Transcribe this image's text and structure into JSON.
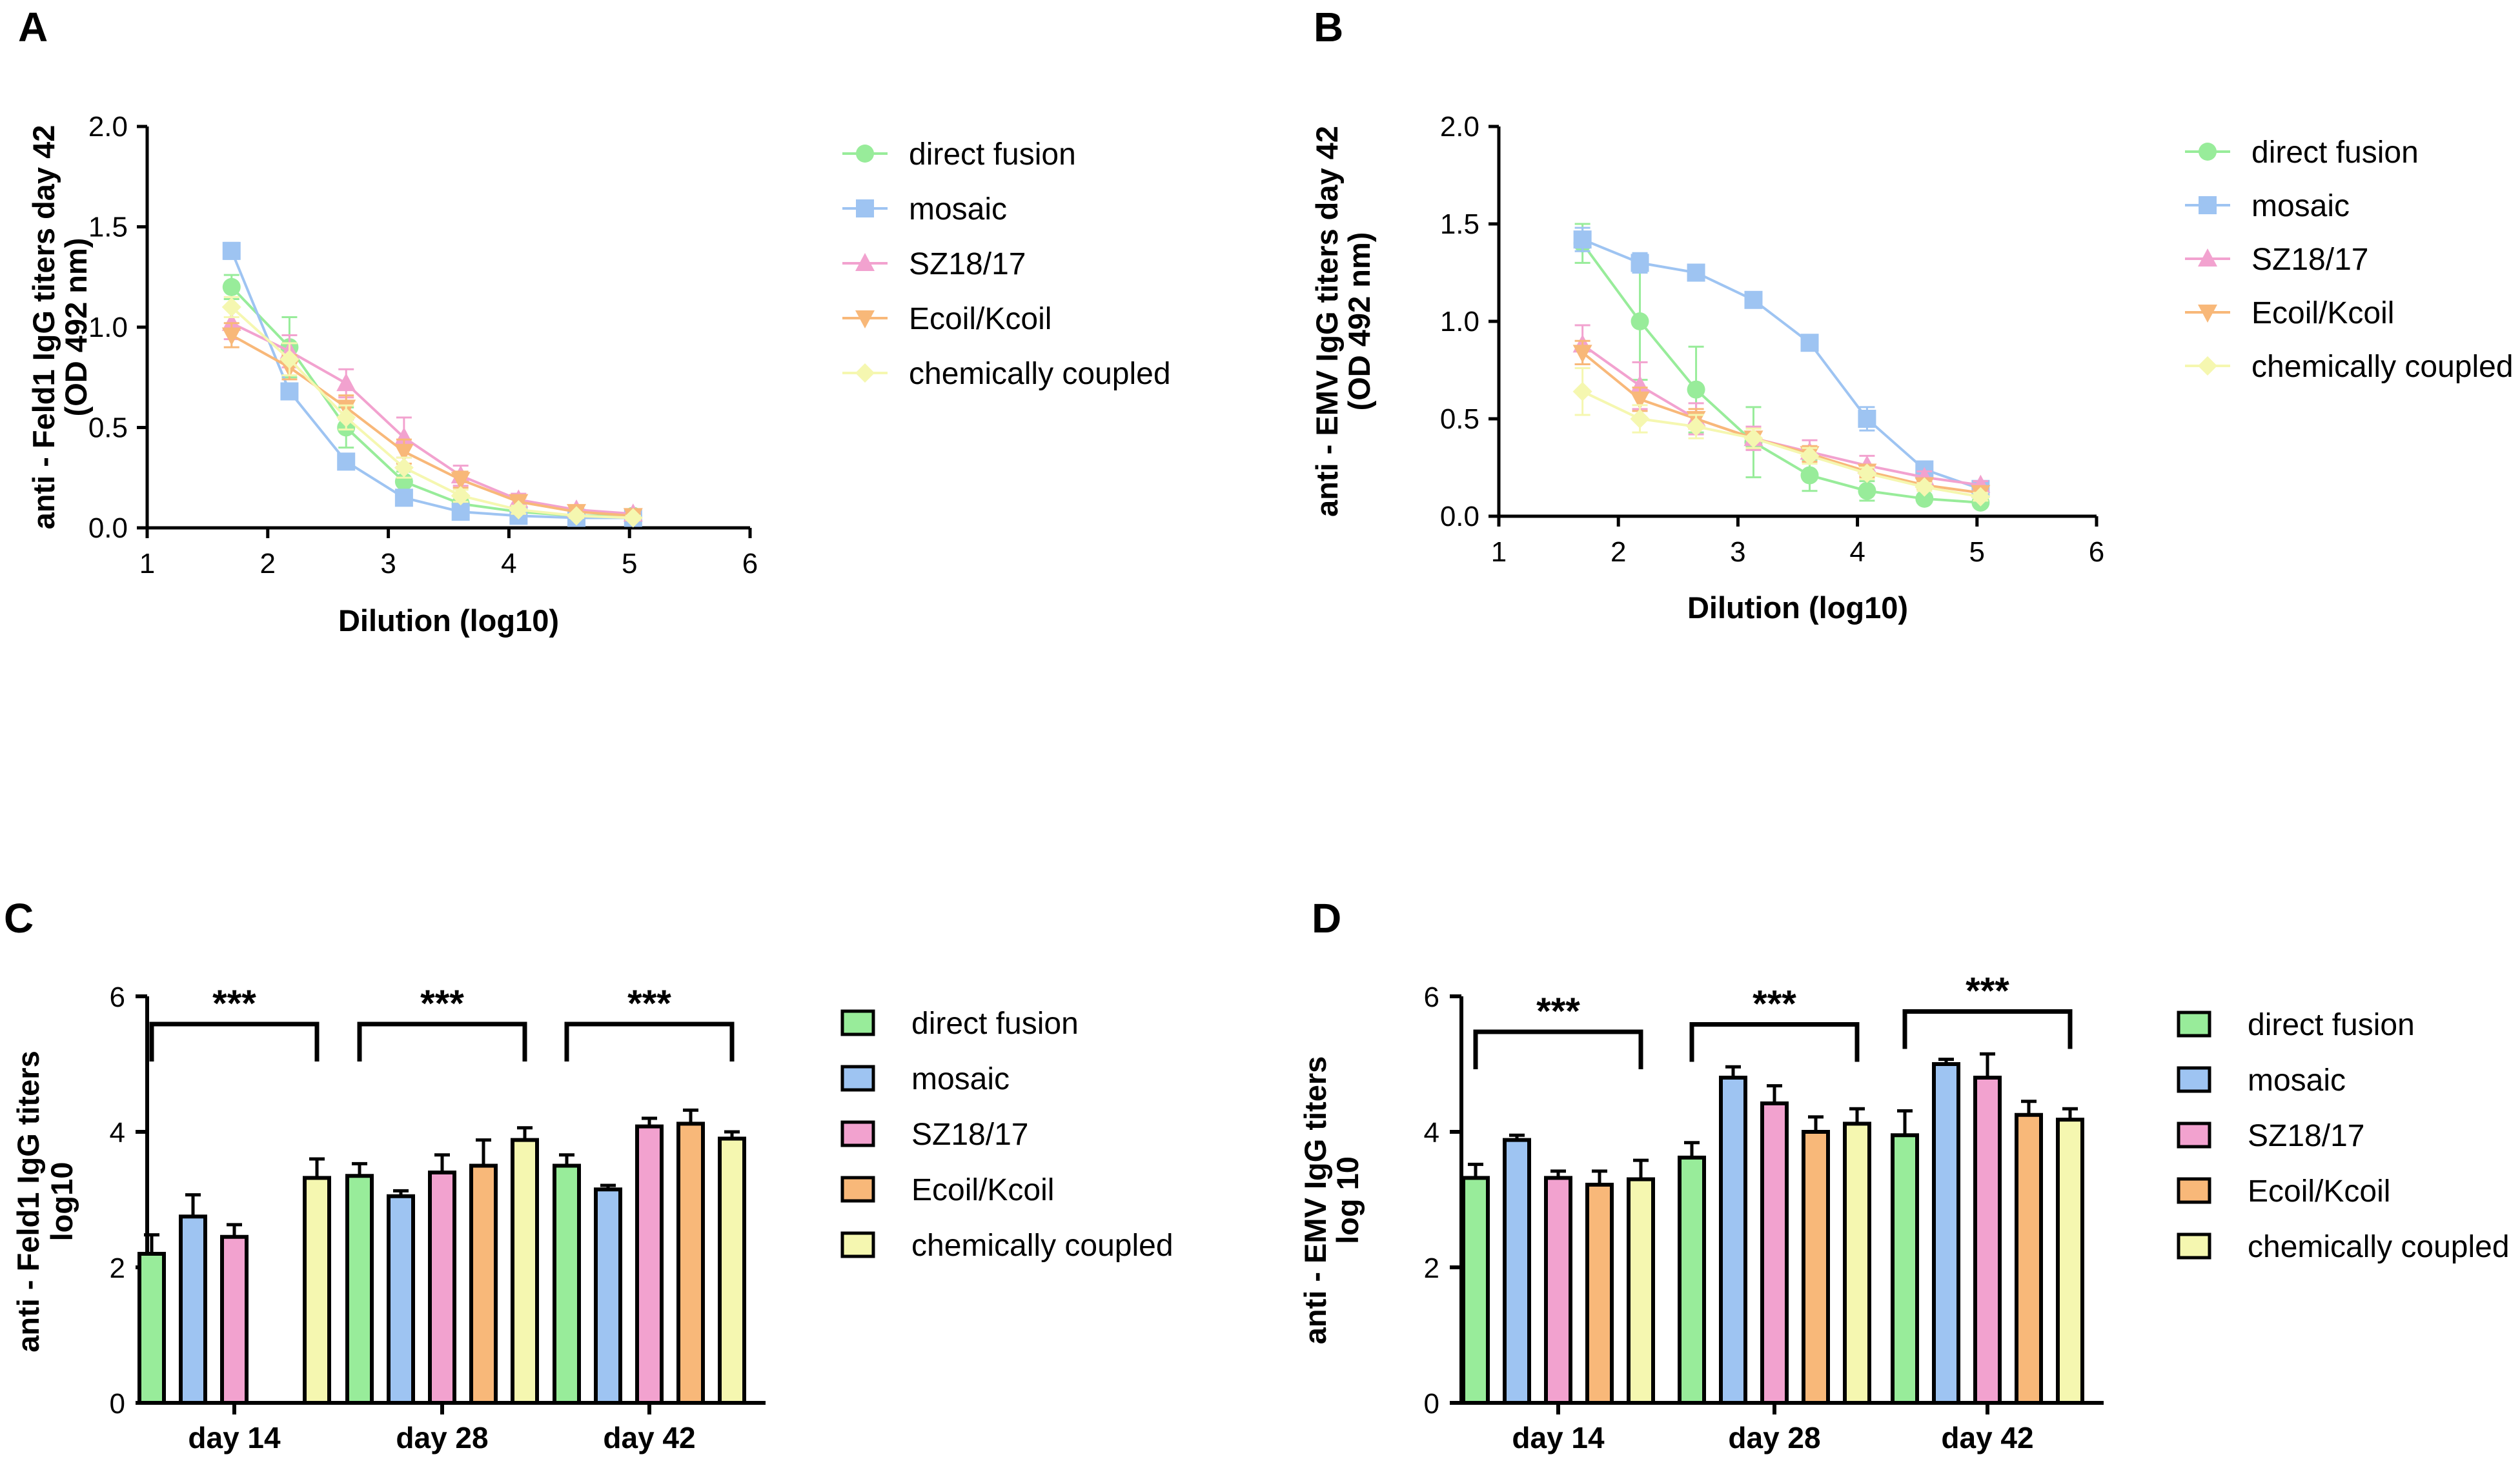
{
  "figure": {
    "panels": [
      "A",
      "B",
      "C",
      "D"
    ]
  },
  "colors": {
    "direct fusion": "#98EC9A",
    "mosaic": "#9EC4F2",
    "SZ18/17": "#F2A2CF",
    "Ecoil/Kcoil": "#F8B879",
    "chemically coupled": "#F5F7B0",
    "axis": "#000000"
  },
  "chart_data": [
    {
      "panel": "A",
      "type": "line",
      "title": "",
      "xlabel": "Dilution (log10)",
      "ylabel": [
        "anti - Feld1 IgG titers day 42",
        "(OD 492 nm)"
      ],
      "xlim": [
        1,
        6
      ],
      "ylim": [
        0,
        2
      ],
      "xticks": [
        "1",
        "2",
        "3",
        "4",
        "5",
        "6"
      ],
      "yticks": [
        "0.0",
        "0.5",
        "1.0",
        "1.5",
        "2.0"
      ],
      "x": [
        1.7,
        2.18,
        2.65,
        3.13,
        3.6,
        4.08,
        4.56,
        5.03
      ],
      "series": [
        {
          "name": "direct fusion",
          "marker": "circle",
          "values": [
            1.2,
            0.9,
            0.5,
            0.23,
            0.12,
            0.08,
            0.06,
            0.06
          ],
          "errors": [
            0.06,
            0.15,
            0.1,
            0.05,
            0.02,
            0.01,
            0.01,
            0.01
          ]
        },
        {
          "name": "mosaic",
          "marker": "square",
          "values": [
            1.38,
            0.68,
            0.33,
            0.15,
            0.08,
            0.06,
            0.05,
            0.05
          ],
          "errors": [
            0.04,
            0.04,
            0.03,
            0.02,
            0.01,
            0.01,
            0.01,
            0.01
          ]
        },
        {
          "name": "SZ18/17",
          "marker": "triangle-up",
          "values": [
            1.02,
            0.88,
            0.72,
            0.45,
            0.26,
            0.14,
            0.09,
            0.07
          ],
          "errors": [
            0.08,
            0.08,
            0.07,
            0.1,
            0.05,
            0.03,
            0.02,
            0.01
          ]
        },
        {
          "name": "Ecoil/Kcoil",
          "marker": "triangle-down",
          "values": [
            0.96,
            0.8,
            0.6,
            0.38,
            0.24,
            0.13,
            0.08,
            0.06
          ],
          "errors": [
            0.06,
            0.06,
            0.06,
            0.06,
            0.04,
            0.02,
            0.02,
            0.01
          ]
        },
        {
          "name": "chemically coupled",
          "marker": "diamond",
          "values": [
            1.1,
            0.84,
            0.55,
            0.3,
            0.16,
            0.09,
            0.06,
            0.05
          ],
          "errors": [
            0.05,
            0.08,
            0.06,
            0.05,
            0.03,
            0.02,
            0.01,
            0.01
          ]
        }
      ]
    },
    {
      "panel": "B",
      "type": "line",
      "title": "",
      "xlabel": "Dilution (log10)",
      "ylabel": [
        "anti - EMV IgG titers day 42",
        "(OD 492 nm)"
      ],
      "xlim": [
        1,
        6
      ],
      "ylim": [
        0,
        2
      ],
      "xticks": [
        "1",
        "2",
        "3",
        "4",
        "5",
        "6"
      ],
      "yticks": [
        "0.0",
        "0.5",
        "1.0",
        "1.5",
        "2.0"
      ],
      "x": [
        1.7,
        2.18,
        2.65,
        3.13,
        3.6,
        4.08,
        4.56,
        5.03
      ],
      "series": [
        {
          "name": "direct fusion",
          "marker": "circle",
          "values": [
            1.4,
            1.0,
            0.65,
            0.38,
            0.21,
            0.13,
            0.09,
            0.07
          ],
          "errors": [
            0.1,
            0.3,
            0.22,
            0.18,
            0.08,
            0.05,
            0.02,
            0.01
          ]
        },
        {
          "name": "mosaic",
          "marker": "square",
          "values": [
            1.42,
            1.3,
            1.25,
            1.11,
            0.89,
            0.5,
            0.24,
            0.14
          ],
          "errors": [
            0.06,
            0.05,
            0.04,
            0.02,
            0.03,
            0.06,
            0.03,
            0.02
          ]
        },
        {
          "name": "SZ18/17",
          "marker": "triangle-up",
          "values": [
            0.88,
            0.67,
            0.5,
            0.4,
            0.33,
            0.26,
            0.2,
            0.16
          ],
          "errors": [
            0.1,
            0.12,
            0.08,
            0.06,
            0.06,
            0.05,
            0.03,
            0.02
          ]
        },
        {
          "name": "Ecoil/Kcoil",
          "marker": "triangle-down",
          "values": [
            0.84,
            0.6,
            0.5,
            0.4,
            0.32,
            0.23,
            0.16,
            0.12
          ],
          "errors": [
            0.06,
            0.06,
            0.05,
            0.05,
            0.04,
            0.03,
            0.02,
            0.02
          ]
        },
        {
          "name": "chemically coupled",
          "marker": "diamond",
          "values": [
            0.64,
            0.5,
            0.46,
            0.4,
            0.31,
            0.22,
            0.15,
            0.1
          ],
          "errors": [
            0.12,
            0.07,
            0.06,
            0.05,
            0.04,
            0.03,
            0.02,
            0.02
          ]
        }
      ]
    },
    {
      "panel": "C",
      "type": "bar",
      "title": "",
      "xlabel": "",
      "ylabel": [
        "anti - Feld1 IgG titers",
        "log10"
      ],
      "ylim": [
        0,
        6
      ],
      "yticks": [
        "0",
        "2",
        "4",
        "6"
      ],
      "categories": [
        "day 14",
        "day 28",
        "day 42"
      ],
      "series": [
        {
          "name": "direct fusion",
          "values": [
            2.2,
            3.35,
            3.5
          ],
          "errors": [
            0.28,
            0.18,
            0.16
          ]
        },
        {
          "name": "mosaic",
          "values": [
            2.75,
            3.05,
            3.15
          ],
          "errors": [
            0.32,
            0.08,
            0.06
          ]
        },
        {
          "name": "SZ18/17",
          "values": [
            2.45,
            3.4,
            4.08
          ],
          "errors": [
            0.18,
            0.26,
            0.12
          ]
        },
        {
          "name": "Ecoil/Kcoil",
          "values": [
            null,
            3.5,
            4.12
          ],
          "errors": [
            null,
            0.38,
            0.2
          ]
        },
        {
          "name": "chemically coupled",
          "values": [
            3.32,
            3.88,
            3.9
          ],
          "errors": [
            0.28,
            0.18,
            0.1
          ]
        }
      ],
      "annotations": [
        {
          "text": "***",
          "category": "day 14"
        },
        {
          "text": "***",
          "category": "day 28"
        },
        {
          "text": "***",
          "category": "day 42"
        }
      ]
    },
    {
      "panel": "D",
      "type": "bar",
      "title": "",
      "xlabel": "",
      "ylabel": [
        "anti - EMV IgG titers",
        "log 10"
      ],
      "ylim": [
        0,
        6
      ],
      "yticks": [
        "0",
        "2",
        "4",
        "6"
      ],
      "categories": [
        "day 14",
        "day 28",
        "day 42"
      ],
      "series": [
        {
          "name": "direct fusion",
          "values": [
            3.32,
            3.62,
            3.95
          ],
          "errors": [
            0.2,
            0.22,
            0.36
          ]
        },
        {
          "name": "mosaic",
          "values": [
            3.88,
            4.8,
            5.0
          ],
          "errors": [
            0.07,
            0.16,
            0.07
          ]
        },
        {
          "name": "SZ18/17",
          "values": [
            3.32,
            4.42,
            4.8
          ],
          "errors": [
            0.1,
            0.26,
            0.35
          ]
        },
        {
          "name": "Ecoil/Kcoil",
          "values": [
            3.22,
            4.0,
            4.25
          ],
          "errors": [
            0.2,
            0.22,
            0.2
          ]
        },
        {
          "name": "chemically coupled",
          "values": [
            3.3,
            4.12,
            4.18
          ],
          "errors": [
            0.28,
            0.22,
            0.16
          ]
        }
      ],
      "annotations": [
        {
          "text": "***",
          "category": "day 14"
        },
        {
          "text": "***",
          "category": "day 28"
        },
        {
          "text": "***",
          "category": "day 42"
        }
      ]
    }
  ]
}
